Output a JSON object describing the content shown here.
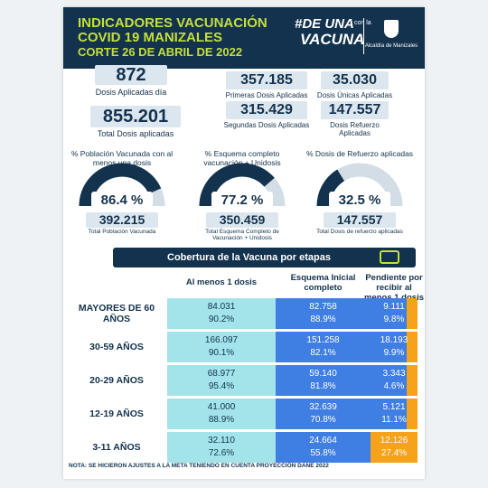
{
  "header": {
    "title_lines": [
      "INDICADORES VACUNACIÓN",
      "COVID 19 MANIZALES",
      "CORTE 26 DE ABRIL DE 2022"
    ],
    "logo": {
      "line1": "#DE UNA",
      "small": "con la",
      "line2": "VACUNA"
    },
    "org": "Alcaldía de Manizales"
  },
  "stats": [
    {
      "value": "872",
      "label": "Dosis Aplicadas día"
    },
    {
      "value": "855.201",
      "label": "Total Dosis aplicadas"
    },
    {
      "value": "357.185",
      "label": "Primeras Dosis Aplicadas"
    },
    {
      "value": "35.030",
      "label": "Dosis Únicas Aplicadas"
    },
    {
      "value": "315.429",
      "label": "Segundas Dosis Aplicadas"
    },
    {
      "value": "147.557",
      "label": "Dosis Refuerzo Aplicadas"
    }
  ],
  "gauges": [
    {
      "title": "% Población Vacunada con al menos una dosis",
      "percent": 86.4,
      "percent_label": "86.4 %",
      "count": "392.215",
      "caption": "Total Población Vacunada"
    },
    {
      "title": "% Esquema completo vacunación + Unidosis",
      "percent": 77.2,
      "percent_label": "77.2 %",
      "count": "350.459",
      "caption": "Total Esquema Completo de Vacunación + Unidosis"
    },
    {
      "title": "% Dosis de Refuerzo aplicadas",
      "percent": 32.5,
      "percent_label": "32.5 %",
      "count": "147.557",
      "caption": "Total Dosis de refuerzo aplicadas"
    }
  ],
  "table": {
    "title": "Cobertura de la Vacuna por etapas",
    "headers": [
      "Al menos 1 dosis",
      "Esquema Inicial completo",
      "Pendiente por recibir al menos 1 dosis"
    ],
    "rows": [
      {
        "label": "MAYORES DE 60 AÑOS",
        "cells": [
          [
            "84.031",
            "90.2%"
          ],
          [
            "82.758",
            "88.9%"
          ],
          [
            "9.111",
            "9.8%"
          ]
        ]
      },
      {
        "label": "30-59 AÑOS",
        "cells": [
          [
            "166.097",
            "90.1%"
          ],
          [
            "151.258",
            "82.1%"
          ],
          [
            "18.193",
            "9.9%"
          ]
        ]
      },
      {
        "label": "20-29 AÑOS",
        "cells": [
          [
            "68.977",
            "95.4%"
          ],
          [
            "59.140",
            "81.8%"
          ],
          [
            "3.343",
            "4.6%"
          ]
        ]
      },
      {
        "label": "12-19 AÑOS",
        "cells": [
          [
            "41.000",
            "88.9%"
          ],
          [
            "32.639",
            "70.8%"
          ],
          [
            "5.121",
            "11.1%"
          ]
        ]
      },
      {
        "label": "3-11 AÑOS",
        "cells": [
          [
            "32.110",
            "72.6%"
          ],
          [
            "24.664",
            "55.8%"
          ],
          [
            "12.126",
            "27.4%"
          ]
        ]
      }
    ]
  },
  "note": "NOTA: SE HICIERON AJUSTES A LA META TENIENDO EN CUENTA PROYECCIÓN DANE 2022"
}
